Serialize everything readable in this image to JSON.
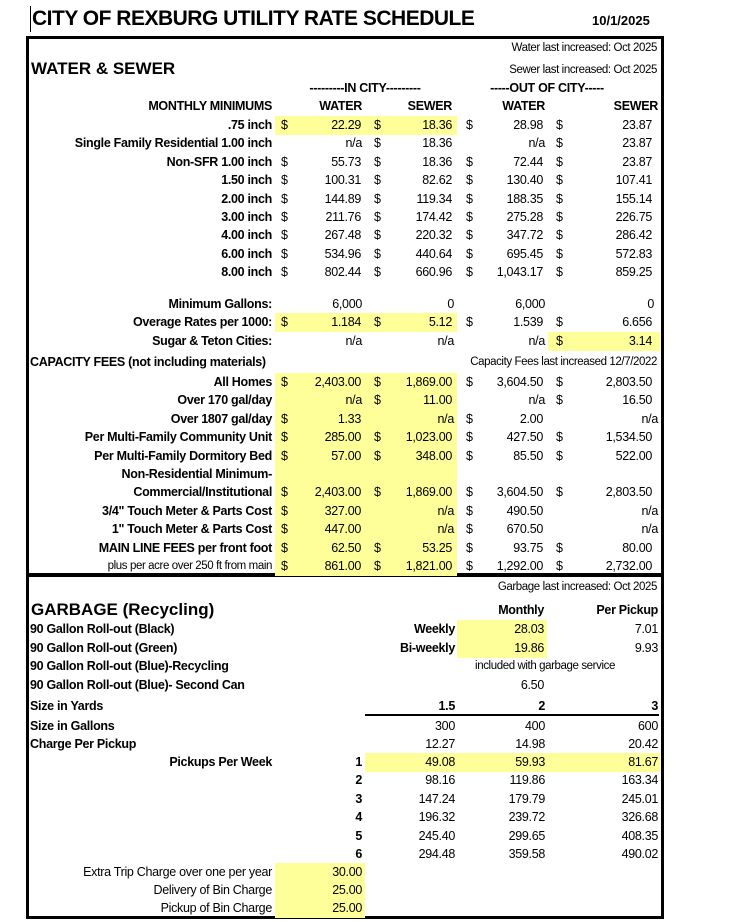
{
  "header": {
    "title": "CITY OF REXBURG UTILITY RATE SCHEDULE",
    "date": "10/1/2025"
  },
  "water_sewer": {
    "water_increased": "Water last increased: Oct 2025",
    "sewer_increased": "Sewer last increased: Oct 2025",
    "section_title": "WATER & SEWER",
    "in_city_label": "---------IN CITY---------",
    "out_city_label": "-----OUT OF CITY-----",
    "columns": [
      "MONTHLY MINIMUMS",
      "WATER",
      "SEWER",
      "WATER",
      "SEWER"
    ],
    "monthly_rows": [
      {
        "label": ".75 inch",
        "cells": [
          "$",
          "22.29",
          "$",
          "18.36",
          "$",
          "28.98",
          "$",
          "23.87"
        ],
        "hl": [
          1,
          1,
          0,
          0
        ]
      },
      {
        "label": "Single Family Residential 1.00 inch",
        "cells": [
          "",
          "n/a",
          "$",
          "18.36",
          "",
          "n/a",
          "$",
          "23.87"
        ],
        "hl": [
          0,
          0,
          0,
          0
        ]
      },
      {
        "label": "Non-SFR 1.00 inch",
        "cells": [
          "$",
          "55.73",
          "$",
          "18.36",
          "$",
          "72.44",
          "$",
          "23.87"
        ],
        "hl": [
          0,
          0,
          0,
          0
        ]
      },
      {
        "label": "1.50 inch",
        "cells": [
          "$",
          "100.31",
          "$",
          "82.62",
          "$",
          "130.40",
          "$",
          "107.41"
        ],
        "hl": [
          0,
          0,
          0,
          0
        ]
      },
      {
        "label": "2.00 inch",
        "cells": [
          "$",
          "144.89",
          "$",
          "119.34",
          "$",
          "188.35",
          "$",
          "155.14"
        ],
        "hl": [
          0,
          0,
          0,
          0
        ]
      },
      {
        "label": "3.00 inch",
        "cells": [
          "$",
          "211.76",
          "$",
          "174.42",
          "$",
          "275.28",
          "$",
          "226.75"
        ],
        "hl": [
          0,
          0,
          0,
          0
        ]
      },
      {
        "label": "4.00 inch",
        "cells": [
          "$",
          "267.48",
          "$",
          "220.32",
          "$",
          "347.72",
          "$",
          "286.42"
        ],
        "hl": [
          0,
          0,
          0,
          0
        ]
      },
      {
        "label": "6.00 inch",
        "cells": [
          "$",
          "534.96",
          "$",
          "440.64",
          "$",
          "695.45",
          "$",
          "572.83"
        ],
        "hl": [
          0,
          0,
          0,
          0
        ]
      },
      {
        "label": "8.00 inch",
        "cells": [
          "$",
          "802.44",
          "$",
          "660.96",
          "$",
          "1,043.17",
          "$",
          "859.25"
        ],
        "hl": [
          0,
          0,
          0,
          0
        ]
      }
    ],
    "usage_rows": [
      {
        "label": "Minimum Gallons:",
        "cells": [
          "",
          "6,000",
          "",
          "0",
          "",
          "6,000",
          "",
          "0"
        ],
        "hl": [
          0,
          0,
          0,
          0
        ]
      },
      {
        "label": "Overage Rates per 1000:",
        "cells": [
          "$",
          "1.184",
          "$",
          "5.12",
          "$",
          "1.539",
          "$",
          "6.656"
        ],
        "hl": [
          1,
          1,
          0,
          0
        ]
      },
      {
        "label": "Sugar & Teton Cities:",
        "cells": [
          "",
          "n/a",
          "",
          "n/a",
          "",
          "n/a",
          "$",
          "3.14"
        ],
        "hl": [
          0,
          0,
          0,
          1
        ]
      }
    ],
    "capacity_title": "CAPACITY FEES (not including materials)",
    "capacity_increased": "Capacity Fees last increased 12/7/2022",
    "capacity_rows": [
      {
        "label": "All Homes",
        "cells": [
          "$",
          "2,403.00",
          "$",
          "1,869.00",
          "$",
          "3,604.50",
          "$",
          "2,803.50"
        ],
        "hl": [
          1,
          1,
          0,
          0
        ]
      },
      {
        "label": "Over 170 gal/day",
        "cells": [
          "",
          "n/a",
          "$",
          "11.00",
          "",
          "n/a",
          "$",
          "16.50"
        ],
        "hl": [
          1,
          1,
          0,
          0
        ]
      },
      {
        "label": "Over 1807 gal/day",
        "cells": [
          "$",
          "1.33",
          "",
          "n/a",
          "$",
          "2.00",
          "",
          "n/a"
        ],
        "hl": [
          1,
          1,
          0,
          0
        ]
      },
      {
        "label": "Per Multi-Family Community Unit",
        "cells": [
          "$",
          "285.00",
          "$",
          "1,023.00",
          "$",
          "427.50",
          "$",
          "1,534.50"
        ],
        "hl": [
          1,
          1,
          0,
          0
        ]
      },
      {
        "label": "Per Multi-Family Dormitory Bed",
        "cells": [
          "$",
          "57.00",
          "$",
          "348.00",
          "$",
          "85.50",
          "$",
          "522.00"
        ],
        "hl": [
          1,
          1,
          0,
          0
        ]
      },
      {
        "label": "Non-Residential Minimum-",
        "cells": [
          "",
          "",
          "",
          "",
          "",
          "",
          "",
          ""
        ],
        "hl": [
          1,
          1,
          0,
          0
        ]
      },
      {
        "label": "Commercial/Institutional",
        "cells": [
          "$",
          "2,403.00",
          "$",
          "1,869.00",
          "$",
          "3,604.50",
          "$",
          "2,803.50"
        ],
        "hl": [
          1,
          1,
          0,
          0
        ]
      },
      {
        "label": "3/4\" Touch Meter & Parts Cost",
        "cells": [
          "$",
          "327.00",
          "",
          "n/a",
          "$",
          "490.50",
          "",
          "n/a"
        ],
        "hl": [
          1,
          1,
          0,
          0
        ]
      },
      {
        "label": "1\" Touch Meter & Parts Cost",
        "cells": [
          "$",
          "447.00",
          "",
          "n/a",
          "$",
          "670.50",
          "",
          "n/a"
        ],
        "hl": [
          1,
          1,
          0,
          0
        ]
      },
      {
        "label": "MAIN LINE FEES per front foot",
        "cells": [
          "$",
          "62.50",
          "$",
          "53.25",
          "$",
          "93.75",
          "$",
          "80.00"
        ],
        "hl": [
          1,
          1,
          0,
          0
        ]
      },
      {
        "label": "plus per acre over 250 ft from main",
        "cells": [
          "$",
          "861.00",
          "$",
          "1,821.00",
          "$",
          "1,292.00",
          "$",
          "2,732.00"
        ],
        "hl": [
          1,
          1,
          0,
          0
        ],
        "small": true
      }
    ]
  },
  "garbage": {
    "increased": "Garbage last increased: Oct 2025",
    "title": "GARBAGE (Recycling)",
    "col_monthly": "Monthly",
    "col_per_pickup": "Per Pickup",
    "cans": [
      {
        "label": "90 Gallon Roll-out (Black)",
        "frequency": "Weekly",
        "monthly": "28.03",
        "per_pickup": "7.01"
      },
      {
        "label": "90 Gallon Roll-out (Green)",
        "frequency": "Bi-weekly",
        "monthly": "19.86",
        "per_pickup": "9.93"
      },
      {
        "label": "90 Gallon Roll-out (Blue)-Recycling",
        "note": "included with garbage service"
      },
      {
        "label": "90 Gallon Roll-out (Blue)- Second Can",
        "monthly": "6.50"
      }
    ],
    "size_yards_label": "Size in Yards",
    "size_yards": [
      "1.5",
      "2",
      "3"
    ],
    "size_gallons_label": "Size in Gallons",
    "size_gallons": [
      "300",
      "400",
      "600"
    ],
    "charge_label": "Charge Per Pickup",
    "charge": [
      "12.27",
      "14.98",
      "20.42"
    ],
    "pickups_label": "Pickups Per Week",
    "pickups": [
      {
        "n": "1",
        "values": [
          "49.08",
          "59.93",
          "81.67"
        ]
      },
      {
        "n": "2",
        "values": [
          "98.16",
          "119.86",
          "163.34"
        ]
      },
      {
        "n": "3",
        "values": [
          "147.24",
          "179.79",
          "245.01"
        ]
      },
      {
        "n": "4",
        "values": [
          "196.32",
          "239.72",
          "326.68"
        ]
      },
      {
        "n": "5",
        "values": [
          "245.40",
          "299.65",
          "408.35"
        ]
      },
      {
        "n": "6",
        "values": [
          "294.48",
          "359.58",
          "490.02"
        ]
      }
    ],
    "extras": [
      {
        "label": "Extra Trip Charge over one per year",
        "value": "30.00"
      },
      {
        "label": "Delivery of Bin Charge",
        "value": "25.00"
      },
      {
        "label": "Pickup of Bin Charge",
        "value": "25.00"
      }
    ]
  },
  "colors": {
    "highlight": "#ffff99",
    "border": "#000000"
  }
}
